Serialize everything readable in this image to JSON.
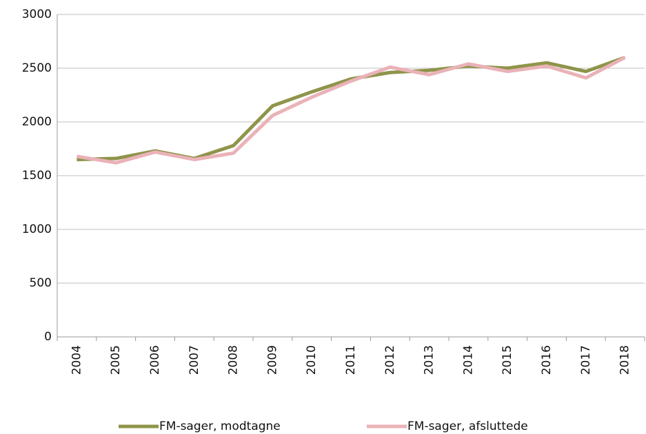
{
  "chart_data": {
    "type": "line",
    "categories": [
      "2004",
      "2005",
      "2006",
      "2007",
      "2008",
      "2009",
      "2010",
      "2011",
      "2012",
      "2013",
      "2014",
      "2015",
      "2016",
      "2017",
      "2018"
    ],
    "series": [
      {
        "name": "FM-sager, modtagne",
        "color": "#8f944a",
        "values": [
          1650,
          1660,
          1730,
          1660,
          1780,
          2150,
          2280,
          2400,
          2460,
          2480,
          2520,
          2500,
          2550,
          2470,
          2600
        ]
      },
      {
        "name": "FM-sager, afsluttede",
        "color": "#eab2b8",
        "values": [
          1680,
          1620,
          1720,
          1650,
          1710,
          2060,
          2230,
          2380,
          2510,
          2440,
          2540,
          2470,
          2520,
          2410,
          2600
        ]
      }
    ],
    "ylim": [
      0,
      3000
    ],
    "yticks": [
      0,
      500,
      1000,
      1500,
      2000,
      2500,
      3000
    ],
    "grid": true
  }
}
